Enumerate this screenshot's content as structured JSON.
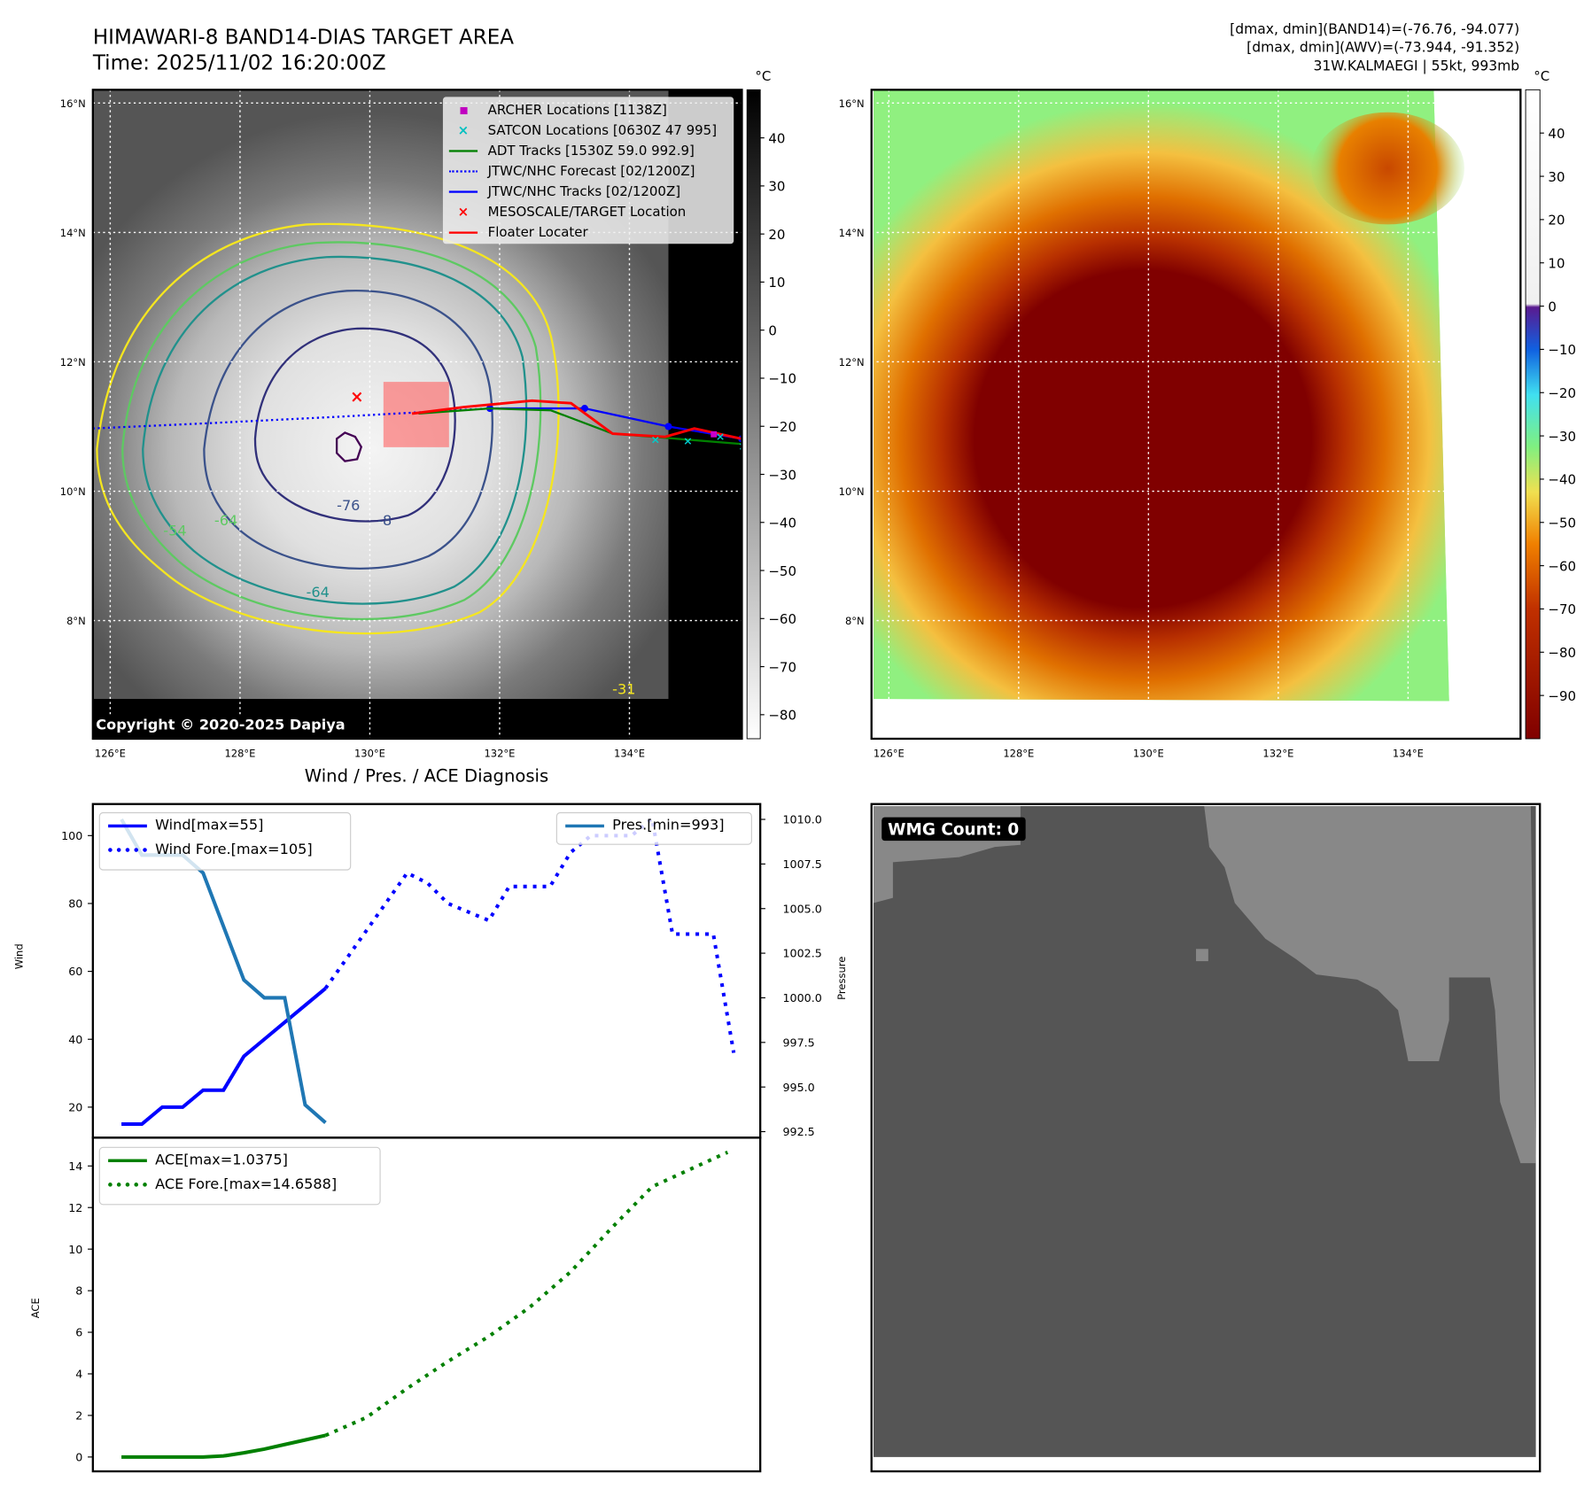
{
  "header": {
    "title": "HIMAWARI-8 BAND14-DIAS TARGET AREA",
    "time": "Time: 2025/11/02 16:20:00Z",
    "info_band14": "[dmax, dmin](BAND14)=(-76.76, -94.077)",
    "info_awv": "[dmax, dmin](AWV)=(-73.944, -91.352)",
    "storm": "31W.KALMAEGI | 55kt, 993mb"
  },
  "maps": {
    "lat_ticks": [
      "16°N",
      "14°N",
      "12°N",
      "10°N",
      "8°N"
    ],
    "lat_values": [
      16,
      14,
      12,
      10,
      8
    ],
    "lon_ticks": [
      "126°E",
      "128°E",
      "130°E",
      "132°E",
      "134°E"
    ],
    "lon_values": [
      126,
      128,
      130,
      132,
      134
    ],
    "unit": "°C",
    "left_colorbar_ticks": [
      "40",
      "30",
      "20",
      "10",
      "0",
      "−10",
      "−20",
      "−30",
      "−40",
      "−50",
      "−60",
      "−70",
      "−80"
    ],
    "left_colorbar_values": [
      40,
      30,
      20,
      10,
      0,
      -10,
      -20,
      -30,
      -40,
      -50,
      -60,
      -70,
      -80
    ],
    "left_colorbar_range": [
      50,
      -85
    ],
    "right_colorbar_ticks": [
      "40",
      "30",
      "20",
      "10",
      "0",
      "−10",
      "−20",
      "−30",
      "−40",
      "−50",
      "−60",
      "−70",
      "−80",
      "−90"
    ],
    "right_colorbar_values": [
      40,
      30,
      20,
      10,
      0,
      -10,
      -20,
      -30,
      -40,
      -50,
      -60,
      -70,
      -80,
      -90
    ],
    "right_colorbar_range": [
      50,
      -100
    ],
    "copyright": "Copyright © 2020-2025 Dapiya",
    "contour_labels": [
      "-76",
      "-8",
      "-64",
      "-54",
      "-64",
      "-31"
    ],
    "legend": [
      {
        "label": "ARCHER Locations [1138Z]",
        "color": "#c000c0",
        "marker": "square"
      },
      {
        "label": "SATCON Locations [0630Z 47 995]",
        "color": "#00c0c0",
        "marker": "x"
      },
      {
        "label": "ADT Tracks [1530Z 59.0 992.9]",
        "color": "#008000",
        "marker": "line"
      },
      {
        "label": "JTWC/NHC Forecast [02/1200Z]",
        "color": "#0000ff",
        "marker": "dotted"
      },
      {
        "label": "JTWC/NHC Tracks [02/1200Z]",
        "color": "#0000ff",
        "marker": "line-dot"
      },
      {
        "label": "MESOSCALE/TARGET Location",
        "color": "#ff0000",
        "marker": "x"
      },
      {
        "label": "Floater Locater",
        "color": "#ff0000",
        "marker": "line"
      }
    ],
    "tracks": {
      "jtwc_forecast": [
        [
          125.73,
          10.97
        ],
        [
          127.5,
          11.05
        ],
        [
          129.5,
          11.15
        ],
        [
          131.85,
          11.28
        ]
      ],
      "jtwc_track": [
        [
          135.73,
          10.81
        ],
        [
          134.6,
          11.0
        ],
        [
          133.31,
          11.28
        ],
        [
          131.85,
          11.28
        ]
      ],
      "adt": [
        [
          135.73,
          10.73
        ],
        [
          133.74,
          10.89
        ],
        [
          132.79,
          11.25
        ],
        [
          131.85,
          11.28
        ],
        [
          130.75,
          11.2
        ]
      ],
      "floater": [
        [
          135.73,
          10.81
        ],
        [
          135.0,
          10.97
        ],
        [
          134.55,
          10.84
        ],
        [
          133.74,
          10.89
        ],
        [
          133.1,
          11.36
        ],
        [
          132.5,
          11.4
        ],
        [
          131.45,
          11.3
        ],
        [
          130.65,
          11.2
        ]
      ],
      "target_box": [
        130.21,
        11.69,
        131.22,
        10.68
      ],
      "target": [
        129.8,
        11.47
      ],
      "archer": [
        135.3,
        10.88
      ],
      "satcon": [
        [
          134.4,
          10.8
        ],
        [
          134.9,
          10.78
        ],
        [
          135.4,
          10.85
        ],
        [
          135.75,
          10.7
        ]
      ]
    }
  },
  "chart_data": [
    {
      "type": "line",
      "title": "Wind / Pres. / ACE Diagnosis",
      "ylabel": "Wind",
      "y2label": "Pressure",
      "ylim": [
        11,
        109.3
      ],
      "y2lim": [
        992.16,
        1010.86
      ],
      "xlim": [
        -1.4,
        31.3
      ],
      "yticks": [
        20,
        40,
        60,
        80,
        100
      ],
      "y2ticks": [
        "992.5",
        "995.0",
        "997.5",
        "1000.0",
        "1002.5",
        "1005.0",
        "1007.5",
        "1010.0"
      ],
      "legend_left": [
        "Wind[max=55]",
        "Wind Fore.[max=105]"
      ],
      "legend_right": [
        "Pres.[min=993]"
      ],
      "series": [
        {
          "name": "Wind",
          "color": "#0000ff",
          "style": "solid",
          "x": [
            0,
            1,
            2,
            3,
            4,
            5,
            6,
            7,
            8,
            9,
            10
          ],
          "values": [
            15,
            15,
            20,
            20,
            25,
            25,
            35,
            40,
            45,
            50,
            55
          ]
        },
        {
          "name": "Wind Fore.",
          "color": "#0000ff",
          "style": "dotted",
          "x": [
            10,
            12,
            14,
            15,
            16,
            18,
            19,
            21,
            22,
            23,
            25,
            26,
            27,
            29,
            30
          ],
          "values": [
            55,
            72,
            89,
            86,
            80,
            75,
            85,
            85,
            95,
            100,
            100,
            105,
            71,
            71,
            36
          ]
        },
        {
          "name": "Pres.",
          "color": "#1f77b4",
          "style": "solid",
          "axis": "right",
          "x": [
            0,
            1,
            2,
            3,
            4,
            5,
            6,
            7,
            8,
            9,
            10
          ],
          "values": [
            1010,
            1008,
            1008,
            1008,
            1007,
            1004,
            1001,
            1000,
            1000,
            994,
            993
          ]
        }
      ]
    },
    {
      "type": "line",
      "ylabel": "ACE",
      "ylim": [
        -0.69,
        15.36
      ],
      "xlim": [
        -1.4,
        31.3
      ],
      "yticks": [
        0,
        2,
        4,
        6,
        8,
        10,
        12,
        14
      ],
      "legend": [
        "ACE[max=1.0375]",
        "ACE Fore.[max=14.6588]"
      ],
      "series": [
        {
          "name": "ACE",
          "color": "#008000",
          "style": "solid",
          "x": [
            0,
            1,
            2,
            3,
            4,
            5,
            6,
            7,
            8,
            9,
            10
          ],
          "values": [
            0,
            0,
            0,
            0,
            0,
            0.05,
            0.2,
            0.38,
            0.6,
            0.82,
            1.04
          ]
        },
        {
          "name": "ACE Fore.",
          "color": "#008000",
          "style": "dotted",
          "x": [
            10,
            12,
            14,
            16,
            18,
            20,
            22,
            24,
            26,
            28,
            29.7
          ],
          "values": [
            1.04,
            1.9,
            3.3,
            4.6,
            5.8,
            7.2,
            8.9,
            11,
            13,
            13.9,
            14.66
          ]
        }
      ]
    }
  ],
  "wmg": {
    "label": "WMG Count: 0"
  }
}
